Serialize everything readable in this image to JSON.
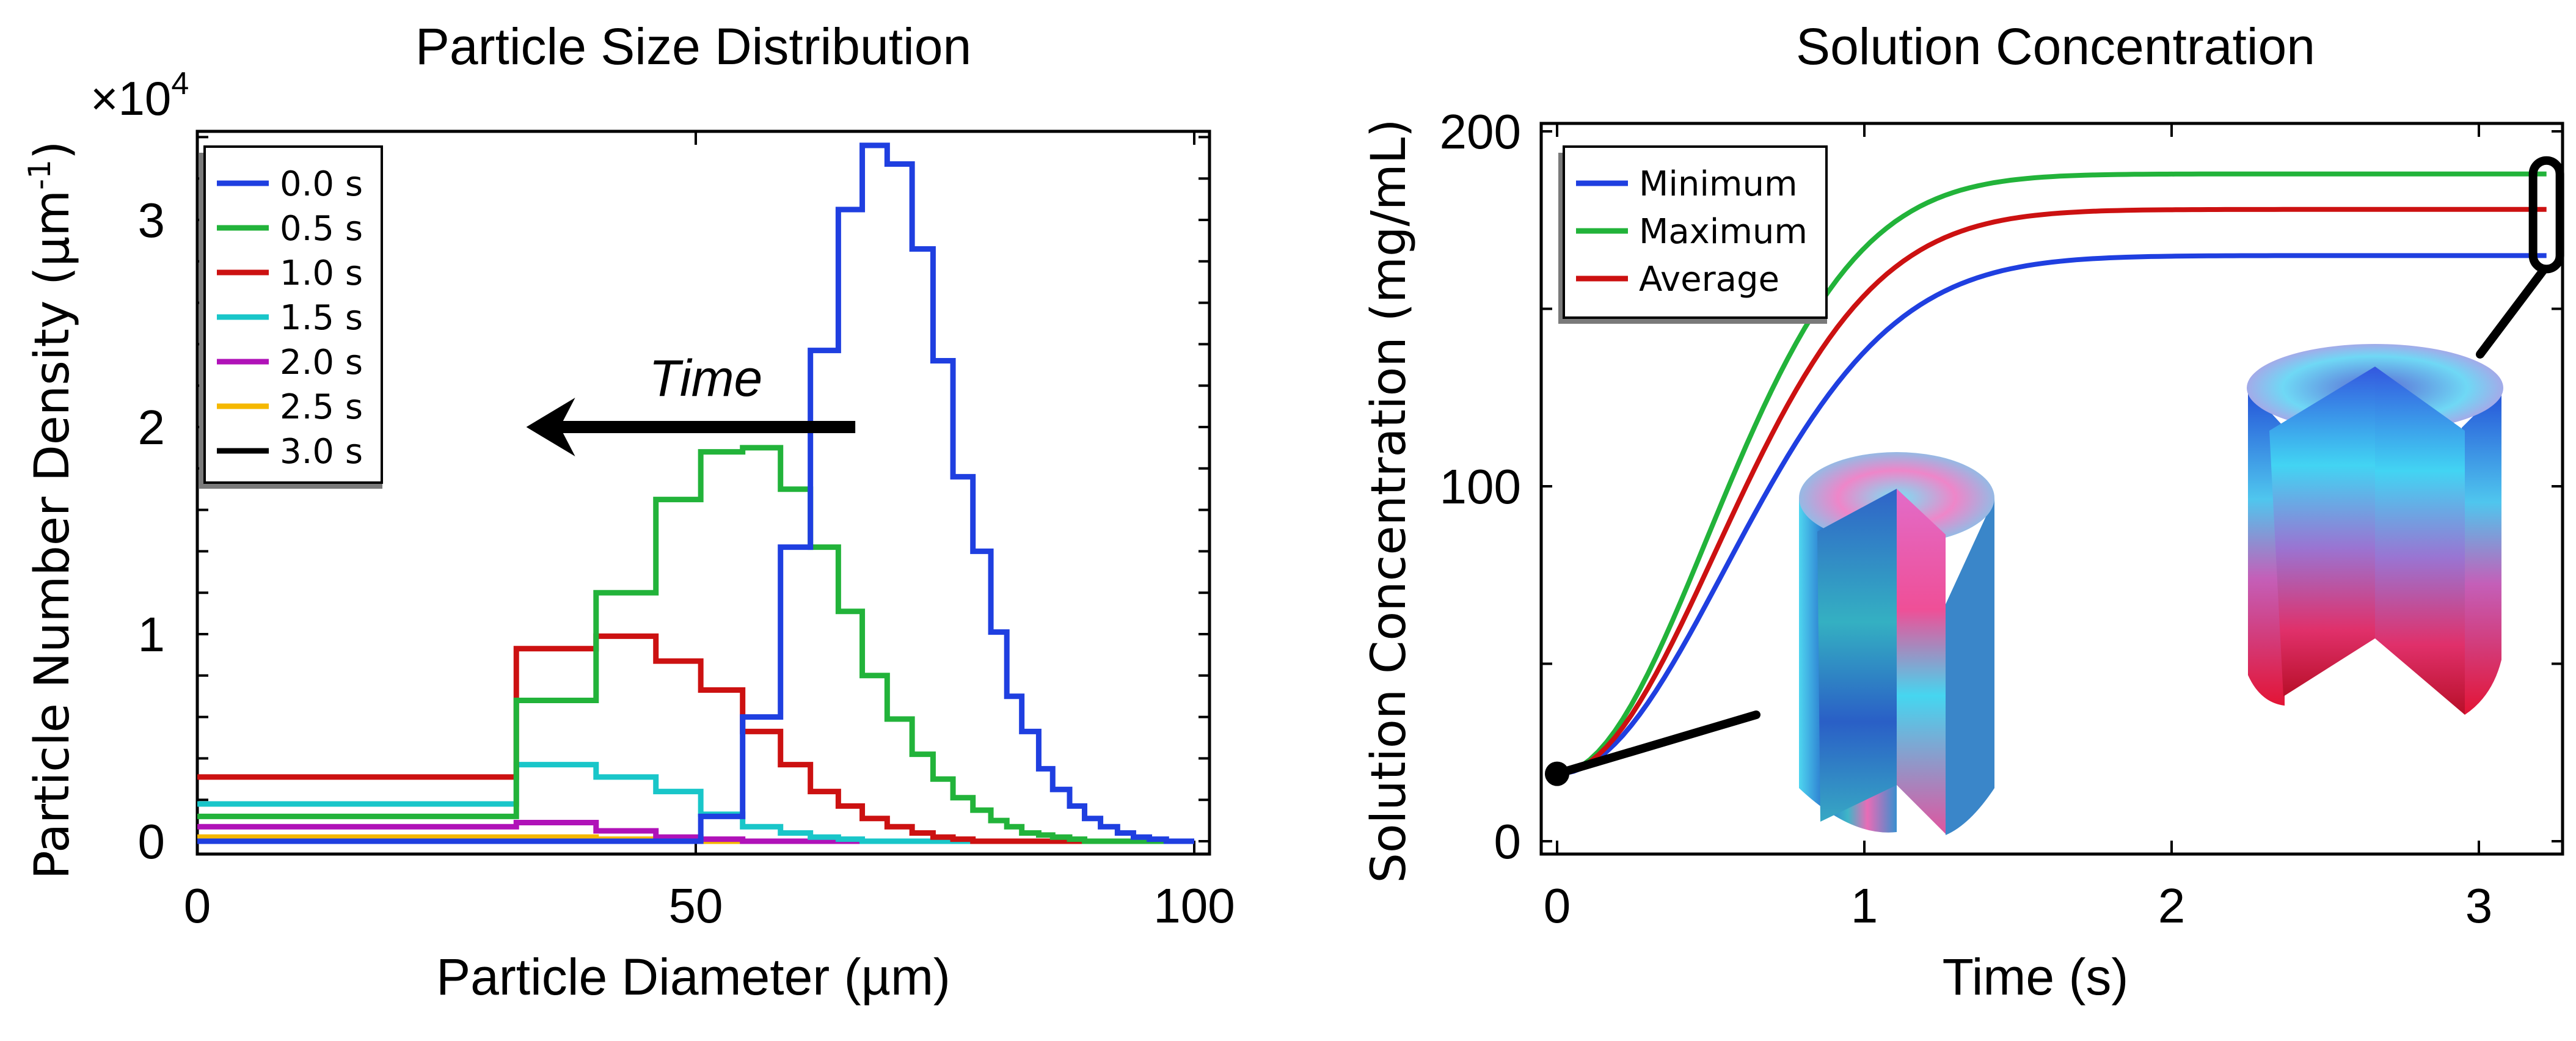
{
  "chart_data": [
    {
      "type": "line",
      "subtype": "step",
      "title": "Particle Size Distribution",
      "xlabel": "Particle Diameter (µm)",
      "ylabel": "Particle Number Density (µm",
      "ylabel_sup": "-1",
      "ylabel_close": ")",
      "y_multiplier": "×10",
      "y_multiplier_exp": "4",
      "xlim": [
        -2,
        101
      ],
      "ylim": [
        -0.07,
        3.45
      ],
      "xticks": [
        0,
        50,
        100
      ],
      "xtick_labels": [
        "0",
        "50",
        "100"
      ],
      "yticks": [
        0,
        1,
        2,
        3
      ],
      "ytick_labels": [
        "0",
        "1",
        "2",
        "3"
      ],
      "y_minor_step": 0.2,
      "grid": false,
      "legend_position": "top-left",
      "bin_edges": [
        0,
        32,
        40,
        46,
        50.5,
        54.7,
        58.5,
        61.5,
        64.3,
        66.7,
        69.2,
        71.7,
        73.8,
        75.8,
        77.8,
        79.6,
        81.2,
        82.7,
        84.4,
        85.8,
        87.5,
        89,
        90.6,
        92.3,
        93.9,
        95.5,
        97.2,
        100
      ],
      "series": [
        {
          "name": "0.0 s",
          "color": "#1f3fe0",
          "values": [
            0,
            0,
            0,
            0,
            0.12,
            0.6,
            1.42,
            2.37,
            3.05,
            3.36,
            3.27,
            2.86,
            2.32,
            1.76,
            1.4,
            1.01,
            0.7,
            0.53,
            0.35,
            0.25,
            0.17,
            0.11,
            0.07,
            0.04,
            0.02,
            0.01,
            0.0
          ]
        },
        {
          "name": "0.5 s",
          "color": "#22b33a",
          "values": [
            0.12,
            0.68,
            1.2,
            1.65,
            1.88,
            1.9,
            1.7,
            1.42,
            1.11,
            0.8,
            0.59,
            0.42,
            0.3,
            0.21,
            0.15,
            0.1,
            0.07,
            0.04,
            0.03,
            0.02,
            0.01,
            0,
            0,
            0,
            0,
            0,
            0
          ]
        },
        {
          "name": "1.0 s",
          "color": "#cc1111",
          "values": [
            0.31,
            0.93,
            0.99,
            0.87,
            0.73,
            0.53,
            0.37,
            0.24,
            0.17,
            0.11,
            0.07,
            0.04,
            0.02,
            0.01,
            0,
            0,
            0,
            0,
            0,
            0,
            0,
            0,
            0,
            0,
            0,
            0,
            0
          ]
        },
        {
          "name": "1.5 s",
          "color": "#19c6c9",
          "values": [
            0.18,
            0.37,
            0.31,
            0.24,
            0.13,
            0.07,
            0.04,
            0.02,
            0.01,
            0,
            0,
            0,
            0,
            0,
            0,
            0,
            0,
            0,
            0,
            0,
            0,
            0,
            0,
            0,
            0,
            0,
            0
          ]
        },
        {
          "name": "2.0 s",
          "color": "#b012b8",
          "values": [
            0.07,
            0.09,
            0.05,
            0.02,
            0.01,
            0,
            0,
            0,
            0,
            0,
            0,
            0,
            0,
            0,
            0,
            0,
            0,
            0,
            0,
            0,
            0,
            0,
            0,
            0,
            0,
            0,
            0
          ]
        },
        {
          "name": "2.5 s",
          "color": "#f5b800",
          "values": [
            0.02,
            0.02,
            0.01,
            0,
            0,
            0,
            0,
            0,
            0,
            0,
            0,
            0,
            0,
            0,
            0,
            0,
            0,
            0,
            0,
            0,
            0,
            0,
            0,
            0,
            0,
            0,
            0
          ]
        },
        {
          "name": "3.0 s",
          "color": "#000000",
          "values": [
            0,
            0,
            0,
            0,
            0,
            0,
            0,
            0,
            0,
            0,
            0,
            0,
            0,
            0,
            0,
            0,
            0,
            0,
            0,
            0,
            0,
            0,
            0,
            0,
            0,
            0,
            0
          ]
        }
      ],
      "annotations": [
        {
          "text": "Time",
          "type": "arrow",
          "direction": "left",
          "x_from": 66,
          "x_to": 33,
          "y": 2.0,
          "text_x": 51,
          "text_y": 2.15
        }
      ]
    },
    {
      "type": "line",
      "title": "Solution Concentration",
      "xlabel": "Time (s)",
      "ylabel": "Solution Concentration (mg/mL)",
      "xlim": [
        -0.05,
        3.28
      ],
      "ylim": [
        -5,
        205
      ],
      "xticks": [
        0,
        1,
        2,
        3
      ],
      "xtick_labels": [
        "0",
        "1",
        "2",
        "3"
      ],
      "yticks": [
        0,
        100,
        200
      ],
      "ytick_labels": [
        "0",
        "100",
        "200"
      ],
      "y_minor_step": 50,
      "grid": false,
      "legend_position": "top-left",
      "series": [
        {
          "name": "Minimum",
          "color": "#1f3fe0",
          "start": 19,
          "end": 165,
          "rate": 1.75
        },
        {
          "name": "Maximum",
          "color": "#22b33a",
          "start": 19,
          "end": 188,
          "rate": 1.95
        },
        {
          "name": "Average",
          "color": "#cc1111",
          "start": 19,
          "end": 178,
          "rate": 1.85
        }
      ],
      "x_samples": [
        0,
        0.25,
        0.5,
        0.75,
        1.0,
        1.25,
        1.5,
        2.0,
        2.5,
        3.0,
        3.25
      ],
      "series_values": {
        "Minimum": [
          19,
          52,
          88,
          118,
          140,
          152,
          158,
          163,
          165,
          165,
          165
        ],
        "Maximum": [
          19,
          62,
          108,
          145,
          168,
          179,
          184,
          187,
          188,
          188,
          188
        ],
        "Average": [
          19,
          57,
          99,
          133,
          155,
          166,
          172,
          176,
          178,
          178,
          178
        ]
      },
      "annotations": [
        {
          "type": "marker",
          "label": "initial-state-marker",
          "x": 0,
          "y": 19
        },
        {
          "type": "bracket",
          "label": "final-state-bracket",
          "x": 3.22,
          "y_range": [
            165,
            188
          ]
        },
        {
          "type": "inset-image",
          "label": "cylinder-concentration-field-initial",
          "description": "3D cut-away cylinder with cyan/blue/pink concentration field"
        },
        {
          "type": "inset-image",
          "label": "cylinder-concentration-field-final",
          "description": "3D cut-away cylinder with blue top and red/pink lower concentration field"
        }
      ]
    }
  ]
}
